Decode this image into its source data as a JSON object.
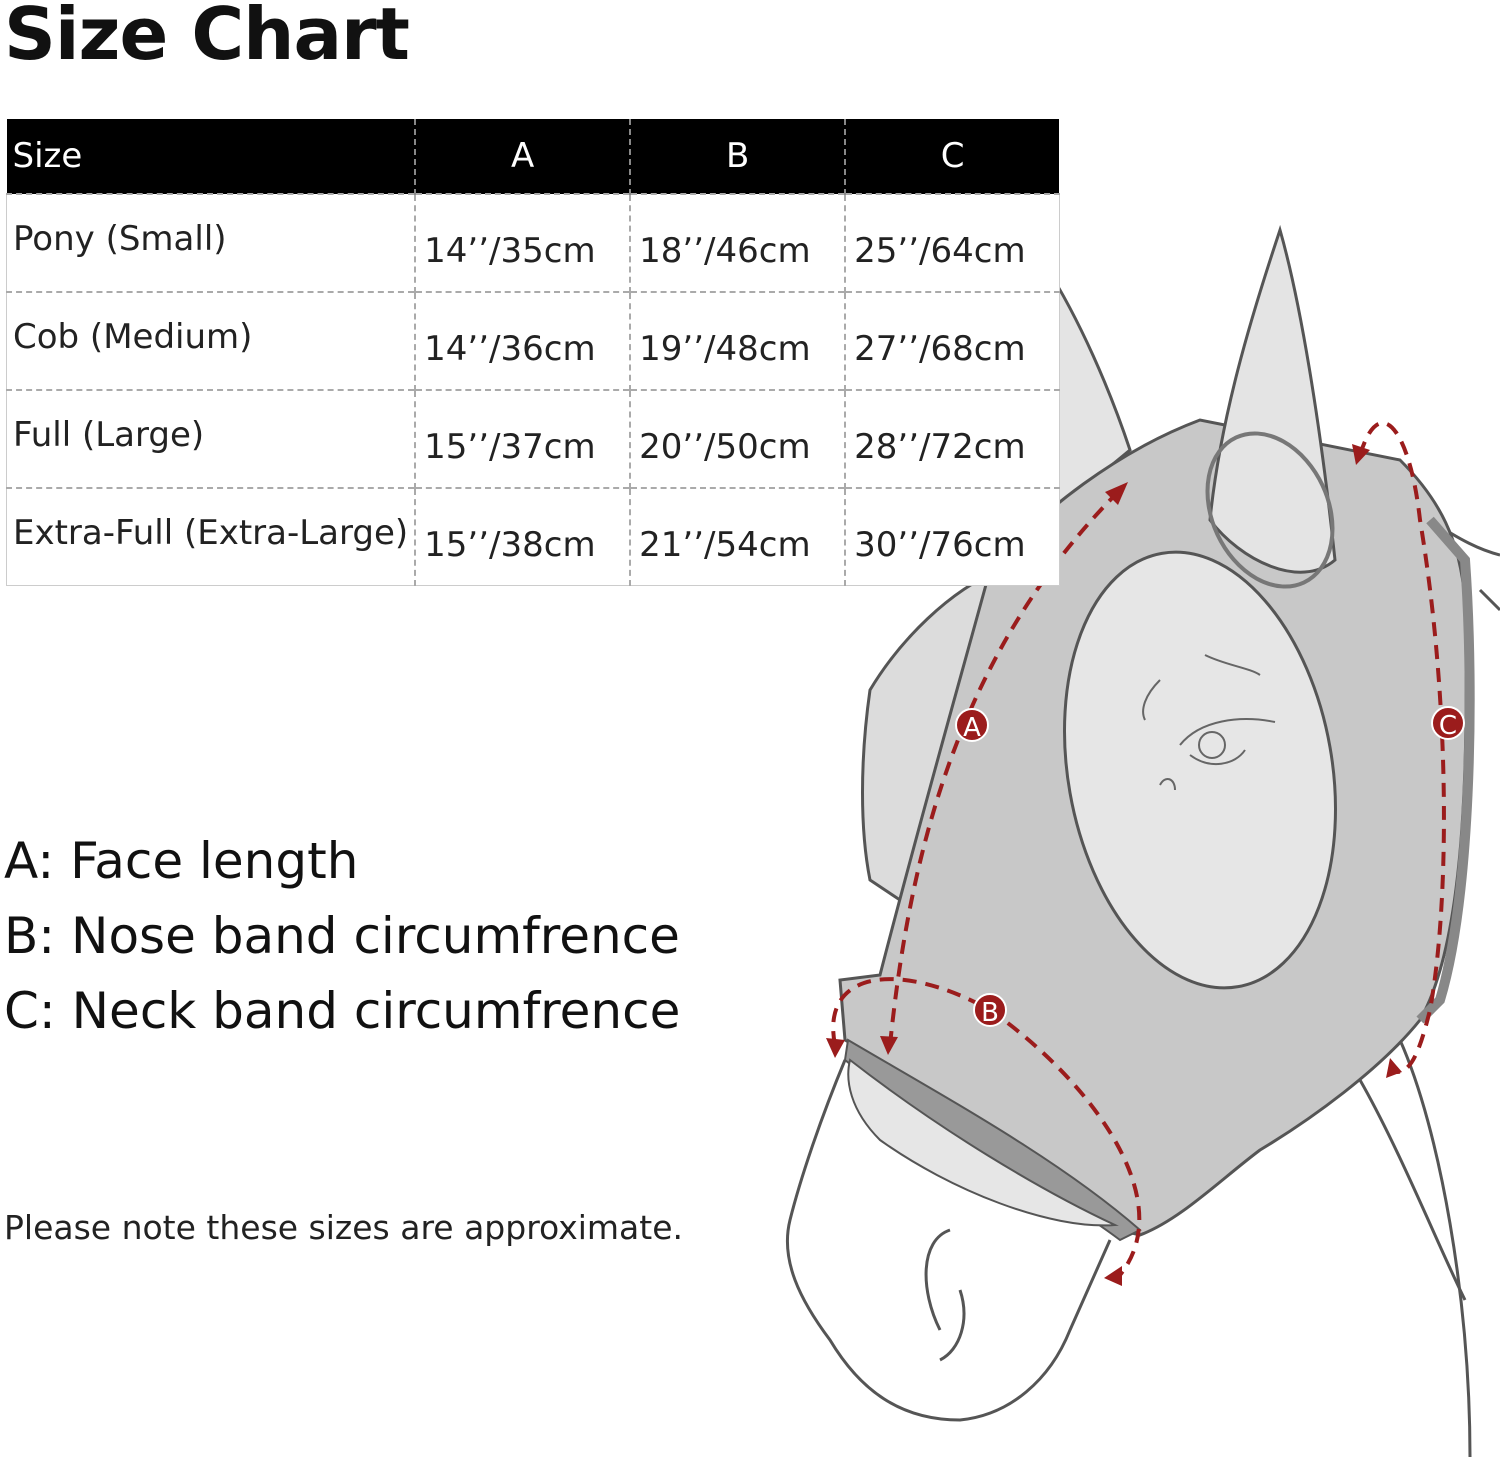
{
  "title": "Size Chart",
  "table": {
    "headers": [
      "Size",
      "A",
      "B",
      "C"
    ],
    "rows": [
      [
        "Pony (Small)",
        "14’’/35cm",
        "18’’/46cm",
        "25’’/64cm"
      ],
      [
        "Cob (Medium)",
        "14’’/36cm",
        "19’’/48cm",
        "27’’/68cm"
      ],
      [
        "Full (Large)",
        "15’’/37cm",
        "20’’/50cm",
        "28’’/72cm"
      ],
      [
        "Extra-Full (Extra-Large)",
        "15’’/38cm",
        "21’’/54cm",
        "30’’/76cm"
      ]
    ]
  },
  "legend": [
    "A: Face length",
    "B: Nose band circumfrence",
    "C: Neck band circumfrence"
  ],
  "note": "Please note these sizes are approximate.",
  "diagram": {
    "markers": [
      "A",
      "B",
      "C"
    ],
    "marker_color": "#9b1c1c",
    "mask_color": "#c8c8c8"
  }
}
